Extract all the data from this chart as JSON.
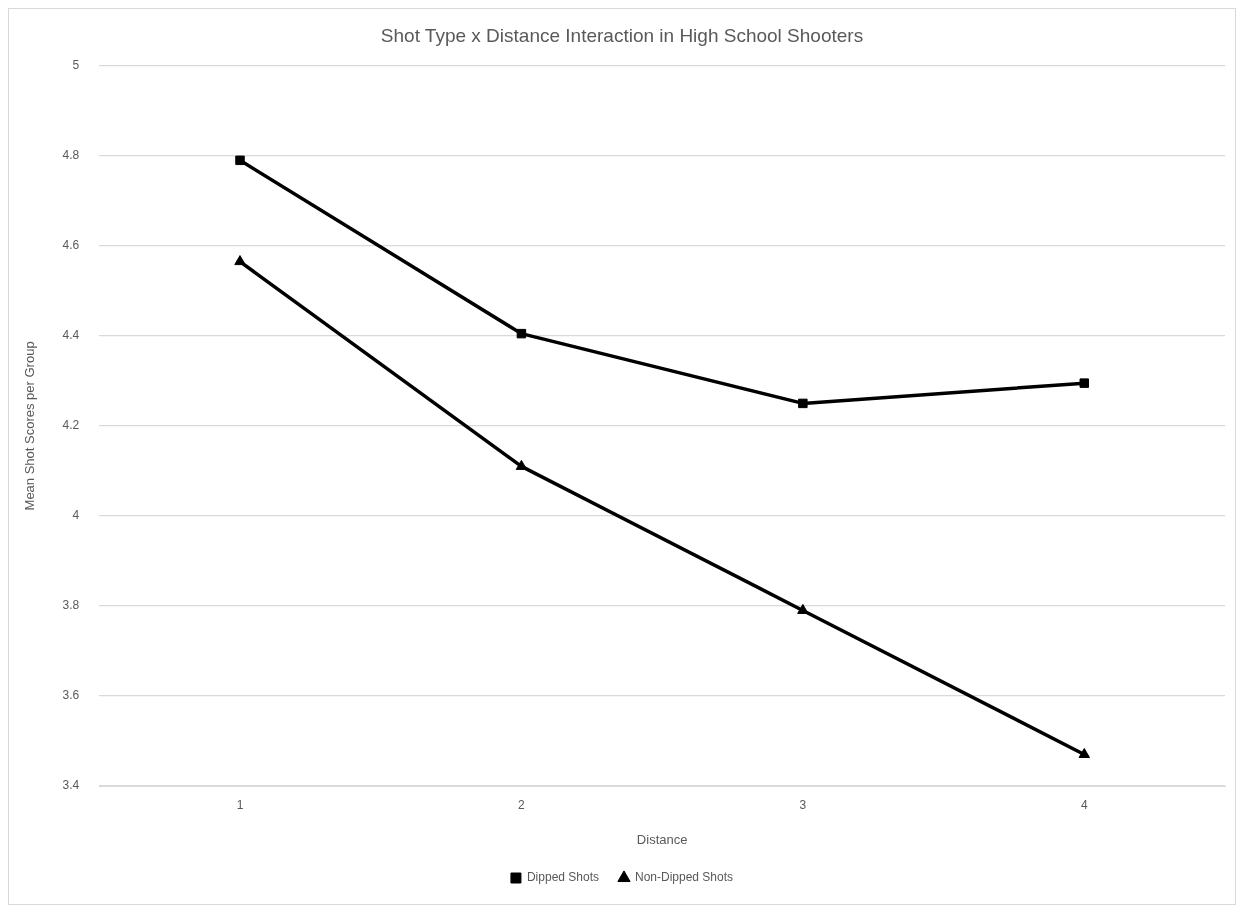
{
  "chart_data": {
    "type": "line",
    "title": "Shot Type x Distance Interaction in High School Shooters",
    "xlabel": "Distance",
    "ylabel": "Mean Shot Scores per Group",
    "categories": [
      "1",
      "2",
      "3",
      "4"
    ],
    "series": [
      {
        "name": "Dipped Shots",
        "color": "#000000",
        "marker": "square",
        "values": [
          4.79,
          4.405,
          4.25,
          4.295
        ]
      },
      {
        "name": "Non-Dipped Shots",
        "color": "#000000",
        "marker": "triangle",
        "values": [
          4.565,
          4.11,
          3.79,
          3.47
        ]
      }
    ],
    "ylim": [
      3.4,
      5
    ],
    "yticks": [
      3.4,
      3.6,
      3.8,
      4,
      4.2,
      4.4,
      4.6,
      4.8,
      5
    ],
    "grid": "y",
    "legend": "bottom",
    "line_style": "solid"
  }
}
